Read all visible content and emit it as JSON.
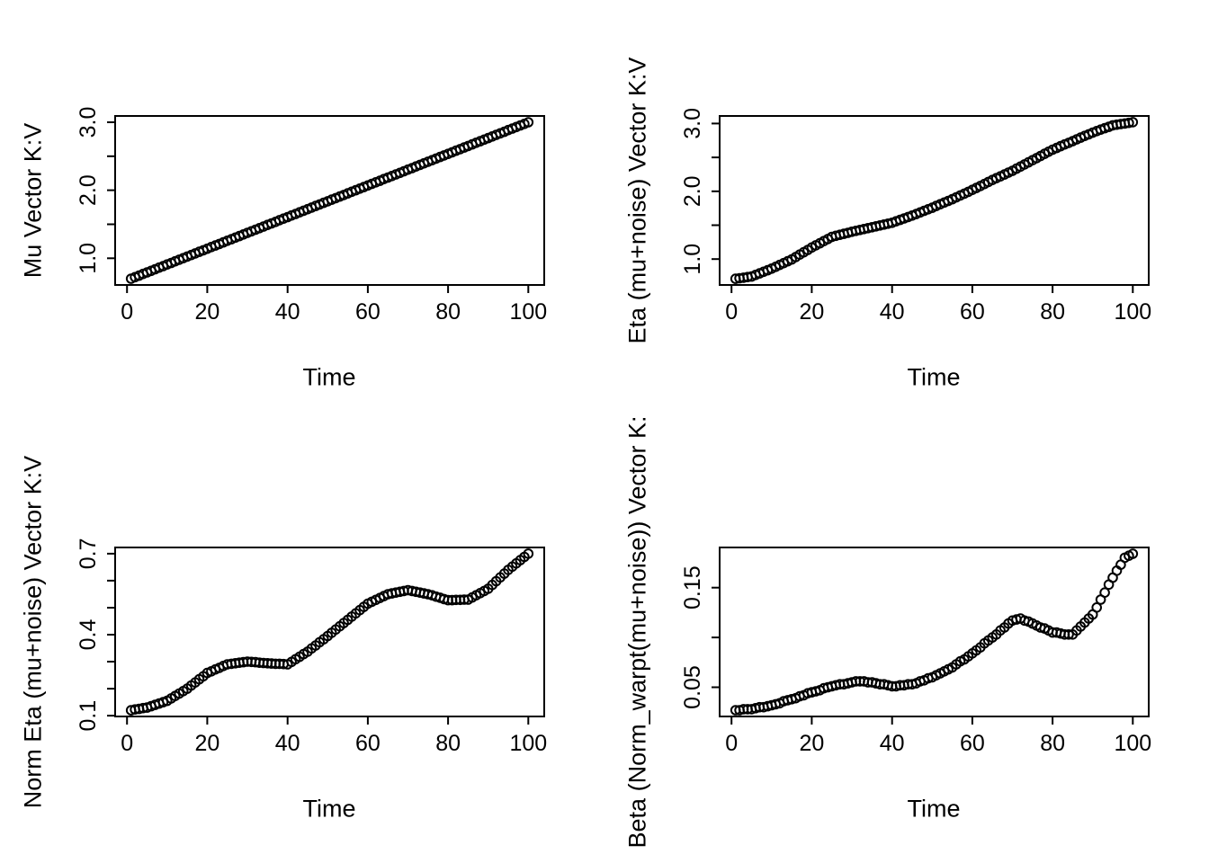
{
  "page": {
    "background": "#ffffff",
    "foreground": "#000000"
  },
  "time": [
    1,
    2,
    3,
    4,
    5,
    6,
    7,
    8,
    9,
    10,
    11,
    12,
    13,
    14,
    15,
    16,
    17,
    18,
    19,
    20,
    21,
    22,
    23,
    24,
    25,
    26,
    27,
    28,
    29,
    30,
    31,
    32,
    33,
    34,
    35,
    36,
    37,
    38,
    39,
    40,
    41,
    42,
    43,
    44,
    45,
    46,
    47,
    48,
    49,
    50,
    51,
    52,
    53,
    54,
    55,
    56,
    57,
    58,
    59,
    60,
    61,
    62,
    63,
    64,
    65,
    66,
    67,
    68,
    69,
    70,
    71,
    72,
    73,
    74,
    75,
    76,
    77,
    78,
    79,
    80,
    81,
    82,
    83,
    84,
    85,
    86,
    87,
    88,
    89,
    90,
    91,
    92,
    93,
    94,
    95,
    96,
    97,
    98,
    99,
    100
  ],
  "chart_data": [
    {
      "type": "scatter",
      "panel": "top-left",
      "title": "",
      "xlabel": "Time",
      "ylabel": "Mu Vector K:V",
      "marker": "open-circle",
      "color": "#000000",
      "grid": false,
      "legend": null,
      "x_ref": "time",
      "xlim": [
        -2.96,
        103.96
      ],
      "ylim": [
        0.608,
        3.092
      ],
      "xticks": [
        {
          "v": 0,
          "label": "0"
        },
        {
          "v": 20,
          "label": "20"
        },
        {
          "v": 40,
          "label": "40"
        },
        {
          "v": 60,
          "label": "60"
        },
        {
          "v": 80,
          "label": "80"
        },
        {
          "v": 100,
          "label": "100"
        }
      ],
      "yticks": [
        {
          "v": 1.0,
          "label": "1.0"
        },
        {
          "v": 1.5,
          "label": ""
        },
        {
          "v": 2.0,
          "label": "2.0"
        },
        {
          "v": 2.5,
          "label": ""
        },
        {
          "v": 3.0,
          "label": "3.0"
        }
      ],
      "y": [
        0.7,
        0.723,
        0.746,
        0.77,
        0.793,
        0.816,
        0.839,
        0.863,
        0.886,
        0.909,
        0.932,
        0.956,
        0.979,
        1.002,
        1.025,
        1.048,
        1.072,
        1.095,
        1.118,
        1.141,
        1.165,
        1.188,
        1.211,
        1.234,
        1.258,
        1.281,
        1.304,
        1.327,
        1.35,
        1.374,
        1.397,
        1.42,
        1.443,
        1.467,
        1.49,
        1.513,
        1.536,
        1.56,
        1.583,
        1.606,
        1.629,
        1.652,
        1.676,
        1.699,
        1.722,
        1.745,
        1.769,
        1.792,
        1.815,
        1.838,
        1.862,
        1.885,
        1.908,
        1.931,
        1.954,
        1.978,
        2.001,
        2.024,
        2.047,
        2.071,
        2.094,
        2.117,
        2.14,
        2.164,
        2.187,
        2.21,
        2.233,
        2.256,
        2.28,
        2.303,
        2.326,
        2.349,
        2.373,
        2.396,
        2.419,
        2.442,
        2.466,
        2.489,
        2.512,
        2.535,
        2.558,
        2.582,
        2.605,
        2.628,
        2.651,
        2.675,
        2.698,
        2.721,
        2.744,
        2.767,
        2.791,
        2.814,
        2.837,
        2.86,
        2.884,
        2.907,
        2.93,
        2.953,
        2.976,
        3.0
      ]
    },
    {
      "type": "scatter",
      "panel": "top-right",
      "title": "",
      "xlabel": "Time",
      "ylabel": "Eta (mu+noise) Vector K:V",
      "marker": "open-circle",
      "color": "#000000",
      "grid": false,
      "legend": null,
      "x_ref": "time",
      "xlim": [
        -2.96,
        103.96
      ],
      "ylim": [
        0.618,
        3.112
      ],
      "xticks": [
        {
          "v": 0,
          "label": "0"
        },
        {
          "v": 20,
          "label": "20"
        },
        {
          "v": 40,
          "label": "40"
        },
        {
          "v": 60,
          "label": "60"
        },
        {
          "v": 80,
          "label": "80"
        },
        {
          "v": 100,
          "label": "100"
        }
      ],
      "yticks": [
        {
          "v": 1.0,
          "label": "1.0"
        },
        {
          "v": 1.5,
          "label": ""
        },
        {
          "v": 2.0,
          "label": "2.0"
        },
        {
          "v": 2.5,
          "label": ""
        },
        {
          "v": 3.0,
          "label": "3.0"
        }
      ],
      "y": [
        0.71,
        0.718,
        0.726,
        0.735,
        0.743,
        0.766,
        0.789,
        0.813,
        0.836,
        0.859,
        0.886,
        0.914,
        0.941,
        0.968,
        0.995,
        1.03,
        1.066,
        1.101,
        1.136,
        1.171,
        1.203,
        1.234,
        1.265,
        1.296,
        1.328,
        1.343,
        1.358,
        1.373,
        1.388,
        1.404,
        1.417,
        1.43,
        1.443,
        1.457,
        1.47,
        1.483,
        1.496,
        1.51,
        1.523,
        1.536,
        1.557,
        1.578,
        1.6,
        1.621,
        1.642,
        1.665,
        1.689,
        1.712,
        1.735,
        1.758,
        1.784,
        1.809,
        1.834,
        1.859,
        1.884,
        1.912,
        1.939,
        1.966,
        1.993,
        2.021,
        2.05,
        2.079,
        2.108,
        2.138,
        2.167,
        2.194,
        2.221,
        2.248,
        2.276,
        2.303,
        2.334,
        2.365,
        2.397,
        2.428,
        2.459,
        2.49,
        2.522,
        2.553,
        2.584,
        2.615,
        2.64,
        2.666,
        2.691,
        2.716,
        2.741,
        2.767,
        2.792,
        2.817,
        2.842,
        2.867,
        2.889,
        2.91,
        2.931,
        2.952,
        2.974,
        2.983,
        2.992,
        3.001,
        3.01,
        3.02
      ]
    },
    {
      "type": "scatter",
      "panel": "bottom-left",
      "title": "",
      "xlabel": "Time",
      "ylabel": "Norm Eta (mu+noise) Vector K:V",
      "marker": "open-circle",
      "color": "#000000",
      "grid": false,
      "legend": null,
      "x_ref": "time",
      "xlim": [
        -2.96,
        103.96
      ],
      "ylim": [
        0.097,
        0.723
      ],
      "xticks": [
        {
          "v": 0,
          "label": "0"
        },
        {
          "v": 20,
          "label": "20"
        },
        {
          "v": 40,
          "label": "40"
        },
        {
          "v": 60,
          "label": "60"
        },
        {
          "v": 80,
          "label": "80"
        },
        {
          "v": 100,
          "label": "100"
        }
      ],
      "yticks": [
        {
          "v": 0.1,
          "label": "0.1"
        },
        {
          "v": 0.2,
          "label": ""
        },
        {
          "v": 0.3,
          "label": ""
        },
        {
          "v": 0.4,
          "label": "0.4"
        },
        {
          "v": 0.5,
          "label": ""
        },
        {
          "v": 0.6,
          "label": ""
        },
        {
          "v": 0.7,
          "label": "0.7"
        }
      ],
      "y": [
        0.12,
        0.123,
        0.125,
        0.128,
        0.13,
        0.135,
        0.14,
        0.145,
        0.15,
        0.155,
        0.164,
        0.173,
        0.182,
        0.191,
        0.2,
        0.212,
        0.223,
        0.235,
        0.246,
        0.258,
        0.264,
        0.271,
        0.277,
        0.284,
        0.29,
        0.292,
        0.294,
        0.296,
        0.298,
        0.3,
        0.299,
        0.298,
        0.296,
        0.295,
        0.294,
        0.293,
        0.292,
        0.292,
        0.291,
        0.29,
        0.299,
        0.309,
        0.318,
        0.328,
        0.337,
        0.349,
        0.36,
        0.372,
        0.383,
        0.395,
        0.407,
        0.419,
        0.431,
        0.443,
        0.455,
        0.467,
        0.479,
        0.491,
        0.503,
        0.515,
        0.522,
        0.529,
        0.536,
        0.543,
        0.55,
        0.553,
        0.556,
        0.559,
        0.562,
        0.565,
        0.562,
        0.559,
        0.556,
        0.553,
        0.55,
        0.546,
        0.541,
        0.537,
        0.532,
        0.528,
        0.528,
        0.529,
        0.529,
        0.53,
        0.53,
        0.538,
        0.546,
        0.554,
        0.562,
        0.57,
        0.584,
        0.598,
        0.612,
        0.626,
        0.64,
        0.652,
        0.664,
        0.676,
        0.688,
        0.7
      ]
    },
    {
      "type": "scatter",
      "panel": "bottom-right",
      "title": "",
      "xlabel": "Time",
      "ylabel": "Beta (Norm_warpt(mu+noise)) Vector K:",
      "marker": "open-circle",
      "color": "#000000",
      "grid": false,
      "legend": null,
      "x_ref": "time",
      "xlim": [
        -2.96,
        103.96
      ],
      "ylim": [
        0.0207,
        0.1903
      ],
      "xticks": [
        {
          "v": 0,
          "label": "0"
        },
        {
          "v": 20,
          "label": "20"
        },
        {
          "v": 40,
          "label": "40"
        },
        {
          "v": 60,
          "label": "60"
        },
        {
          "v": 80,
          "label": "80"
        },
        {
          "v": 100,
          "label": "100"
        }
      ],
      "yticks": [
        {
          "v": 0.05,
          "label": "0.05"
        },
        {
          "v": 0.1,
          "label": ""
        },
        {
          "v": 0.15,
          "label": "0.15"
        }
      ],
      "y": [
        0.027,
        0.027,
        0.028,
        0.028,
        0.028,
        0.029,
        0.03,
        0.03,
        0.031,
        0.032,
        0.033,
        0.034,
        0.036,
        0.037,
        0.038,
        0.039,
        0.041,
        0.042,
        0.044,
        0.045,
        0.046,
        0.047,
        0.049,
        0.05,
        0.051,
        0.052,
        0.053,
        0.053,
        0.054,
        0.055,
        0.056,
        0.056,
        0.056,
        0.055,
        0.055,
        0.054,
        0.053,
        0.053,
        0.052,
        0.051,
        0.051,
        0.052,
        0.052,
        0.053,
        0.053,
        0.054,
        0.056,
        0.057,
        0.059,
        0.06,
        0.062,
        0.064,
        0.066,
        0.068,
        0.07,
        0.073,
        0.076,
        0.078,
        0.081,
        0.084,
        0.087,
        0.09,
        0.094,
        0.097,
        0.1,
        0.103,
        0.107,
        0.11,
        0.114,
        0.117,
        0.118,
        0.119,
        0.117,
        0.116,
        0.114,
        0.112,
        0.11,
        0.109,
        0.107,
        0.105,
        0.105,
        0.104,
        0.103,
        0.103,
        0.103,
        0.107,
        0.111,
        0.115,
        0.119,
        0.123,
        0.13,
        0.138,
        0.145,
        0.153,
        0.16,
        0.167,
        0.173,
        0.18,
        0.182,
        0.184
      ]
    }
  ]
}
